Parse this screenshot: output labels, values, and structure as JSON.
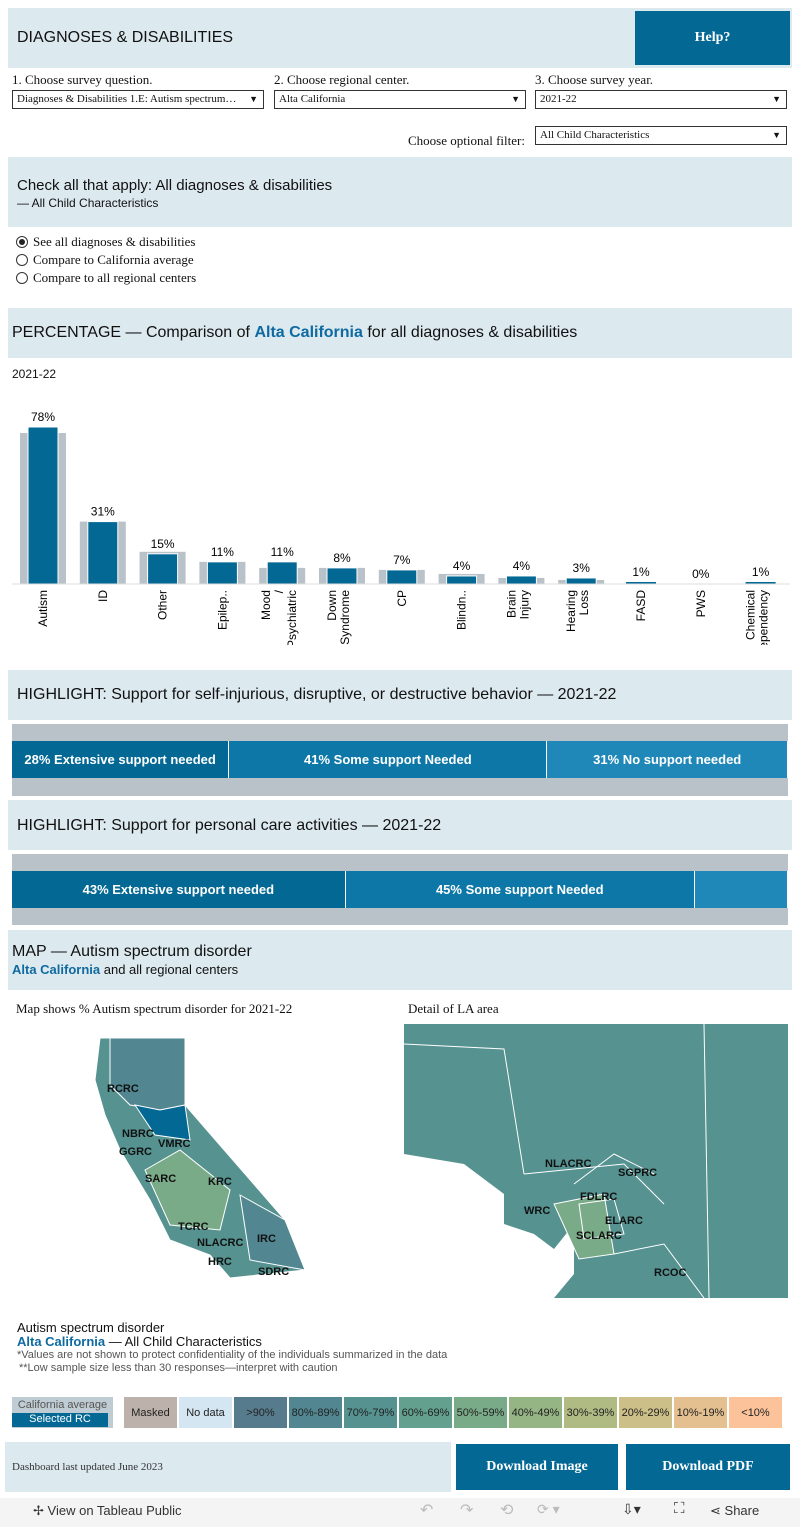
{
  "header": {
    "title": "DIAGNOSES & DISABILITIES",
    "help": "Help?"
  },
  "filters": {
    "q_label": "1. Choose survey question.",
    "q_value": "Diagnoses & Disabilities 1.E: Autism spectrum…",
    "rc_label": "2. Choose regional center.",
    "rc_value": "Alta California",
    "year_label": "3. Choose survey year.",
    "year_value": "2021-22",
    "opt_label": "Choose optional filter:",
    "opt_value": "All Child Characteristics"
  },
  "question": {
    "title": "Check all that apply: All diagnoses & disabilities",
    "subtitle": "— All Child Characteristics",
    "options": [
      "See all diagnoses & disabilities",
      "Compare to California average",
      "Compare to all regional centers"
    ],
    "selected": 0
  },
  "percentage": {
    "prefix": "PERCENTAGE — Comparison of ",
    "rc": "Alta California",
    "suffix": " for all diagnoses & disabilities",
    "year": "2021-22"
  },
  "chart_data": {
    "type": "bar",
    "title": "PERCENTAGE — Comparison of Alta California for all diagnoses & disabilities",
    "categories": [
      "Autism",
      "ID",
      "Other",
      "Epilep..",
      "Mood / Psychiatric",
      "Down Syndrome",
      "CP",
      "Blindn..",
      "Brain Injury",
      "Hearing Loss",
      "FASD",
      "PWS",
      "Chemical Dependency"
    ],
    "series": [
      {
        "name": "Selected RC",
        "values": [
          78,
          31,
          15,
          11,
          11,
          8,
          7,
          4,
          4,
          3,
          1,
          0,
          1
        ],
        "labels": [
          "78%",
          "31%",
          "15%",
          "11%",
          "11%",
          "8%",
          "7%",
          "4%",
          "4%",
          "3%",
          "1%",
          "0%",
          "1%"
        ],
        "color": "#046895"
      },
      {
        "name": "California average",
        "values": [
          75,
          31,
          16,
          11,
          8,
          8,
          7,
          5,
          3,
          2,
          0,
          0,
          0
        ],
        "color": "#b9c2c8"
      }
    ],
    "ylim": [
      0,
      80
    ]
  },
  "highlight1": {
    "title": "HIGHLIGHT: Support for self-injurious, disruptive, or destructive behavior — 2021-22",
    "segments": [
      {
        "label": "28% Extensive support needed",
        "pct": 28
      },
      {
        "label": "41% Some support Needed",
        "pct": 41
      },
      {
        "label": "31% No support needed",
        "pct": 31
      }
    ]
  },
  "highlight2": {
    "title": "HIGHLIGHT: Support for personal care activities — 2021-22",
    "segments": [
      {
        "label": "43% Extensive support needed",
        "pct": 43
      },
      {
        "label": "45% Some support Needed",
        "pct": 45
      },
      {
        "label": "",
        "pct": 12
      }
    ]
  },
  "map": {
    "title": "MAP — Autism spectrum disorder",
    "rc": "Alta California",
    "sub": " and all regional centers",
    "left_caption": "Map shows % Autism spectrum disorder for 2021-22",
    "right_caption": "Detail of LA area",
    "labels": [
      "RCRC",
      "NBRC",
      "GGRC",
      "VMRC",
      "SARC",
      "KRC",
      "TCRC",
      "NLACRC",
      "HRC",
      "IRC",
      "SDRC"
    ],
    "la_labels": [
      "NLACRC",
      "SGPRC",
      "FDLRC",
      "WRC",
      "ELARC",
      "SCLARC",
      "RCOC"
    ]
  },
  "notes": {
    "title": "Autism spectrum disorder",
    "rc": "Alta California",
    "rc_suffix": " — All Child Characteristics",
    "n1": "*Values are not shown to protect confidentiality of the individuals summarized in the data",
    "n2": "**Low sample size less than 30 responses—interpret with caution"
  },
  "legend": {
    "ca": "California average",
    "sel": "Selected RC",
    "items": [
      {
        "label": "Masked",
        "color": "#bdb1ab"
      },
      {
        "label": "No data",
        "color": "#d4e6f1"
      },
      {
        "label": ">90%",
        "color": "#567b8c"
      },
      {
        "label": "80%-89%",
        "color": "#528791"
      },
      {
        "label": "70%-79%",
        "color": "#559290"
      },
      {
        "label": "60%-69%",
        "color": "#63a08e"
      },
      {
        "label": "50%-59%",
        "color": "#7aab89"
      },
      {
        "label": "40%-49%",
        "color": "#95b585"
      },
      {
        "label": "30%-39%",
        "color": "#b0bb84"
      },
      {
        "label": "20%-29%",
        "color": "#cdbf88"
      },
      {
        "label": "10%-19%",
        "color": "#e4c090"
      },
      {
        "label": "<10%",
        "color": "#fcc39a"
      }
    ]
  },
  "footer": {
    "updated": "Dashboard last updated June 2023",
    "download_image": "Download Image",
    "download_pdf": "Download PDF"
  },
  "toolbar": {
    "tableau": "View on Tableau Public",
    "share": "Share"
  }
}
